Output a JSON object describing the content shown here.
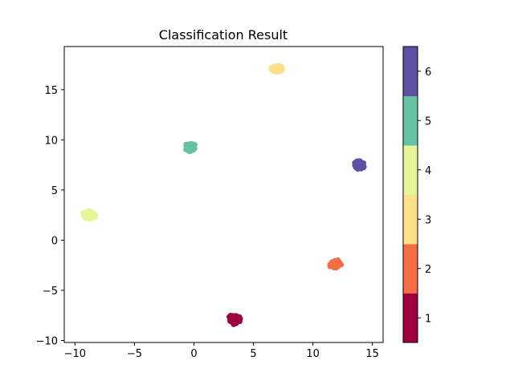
{
  "chart_data": {
    "type": "scatter",
    "title": "Classification Result",
    "xlabel": "",
    "ylabel": "",
    "xlim": [
      -10.9,
      15.9
    ],
    "ylim": [
      -10.2,
      19.3
    ],
    "x_ticks": [
      -10,
      -5,
      0,
      5,
      10,
      15
    ],
    "y_ticks": [
      -10,
      -5,
      0,
      5,
      10,
      15
    ],
    "grid": false,
    "clusters": [
      {
        "class": 1,
        "center": [
          3.4,
          -7.9
        ],
        "spread": [
          0.45,
          0.45
        ],
        "color": "#9e0142"
      },
      {
        "class": 2,
        "center": [
          11.9,
          -2.4
        ],
        "spread": [
          0.5,
          0.4
        ],
        "color": "#f46d43"
      },
      {
        "class": 3,
        "center": [
          7.0,
          17.1
        ],
        "spread": [
          0.5,
          0.4
        ],
        "color": "#fee08b"
      },
      {
        "class": 4,
        "center": [
          -8.8,
          2.5
        ],
        "spread": [
          0.55,
          0.45
        ],
        "color": "#e6f598"
      },
      {
        "class": 5,
        "center": [
          -0.3,
          9.3
        ],
        "spread": [
          0.45,
          0.45
        ],
        "color": "#66c2a5"
      },
      {
        "class": 6,
        "center": [
          13.9,
          7.5
        ],
        "spread": [
          0.45,
          0.45
        ],
        "color": "#5e4fa2"
      }
    ],
    "colorbar": {
      "ticks": [
        1,
        2,
        3,
        4,
        5,
        6
      ],
      "colors": [
        "#9e0142",
        "#f46d43",
        "#fee08b",
        "#e6f598",
        "#66c2a5",
        "#5e4fa2"
      ]
    }
  }
}
